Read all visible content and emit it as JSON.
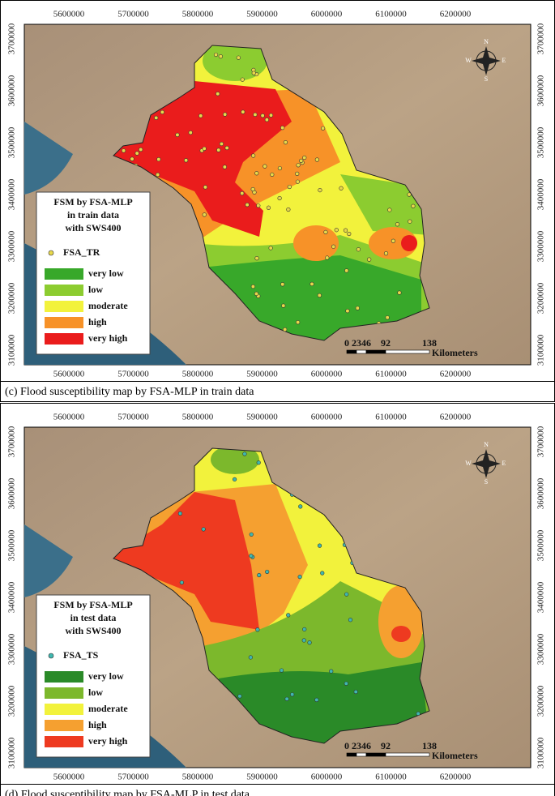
{
  "panels": [
    {
      "x_ticks": [
        "5600000",
        "5700000",
        "5800000",
        "5900000",
        "6000000",
        "6100000",
        "6200000"
      ],
      "y_ticks": [
        "3700000",
        "3600000",
        "3500000",
        "3400000",
        "3300000",
        "3200000",
        "3100000"
      ],
      "legend": {
        "title": [
          "FSM by FSA-MLP",
          "in train data",
          "with SWS400"
        ],
        "points": "FSA_TR",
        "point_color": "#e8d84a",
        "classes": [
          "very low",
          "low",
          "moderate",
          "high",
          "very high"
        ],
        "class_colors": [
          "#38a82a",
          "#8ccc30",
          "#f2f23c",
          "#f79228",
          "#ea1c1c"
        ]
      },
      "scale": {
        "labels": [
          "0",
          "23",
          "46",
          "92",
          "138"
        ],
        "unit": "Kilometers"
      },
      "compass": [
        "N",
        "W",
        "E",
        "S"
      ],
      "caption": "(c) Flood susceptibility map by FSA-MLP in train data"
    },
    {
      "x_ticks": [
        "5600000",
        "5700000",
        "5800000",
        "5900000",
        "6000000",
        "6100000",
        "6200000"
      ],
      "y_ticks": [
        "3700000",
        "3600000",
        "3500000",
        "3400000",
        "3300000",
        "3200000",
        "3100000"
      ],
      "legend": {
        "title": [
          "FSM by FSA-MLP",
          "in test data",
          "with SWS400"
        ],
        "points": "FSA_TS",
        "point_color": "#3fb8b0",
        "classes": [
          "very low",
          "low",
          "moderate",
          "high",
          "very high"
        ],
        "class_colors": [
          "#2a8a28",
          "#7cb82c",
          "#f2f23c",
          "#f5a030",
          "#ee3a20"
        ]
      },
      "scale": {
        "labels": [
          "0",
          "23",
          "46",
          "92",
          "138"
        ],
        "unit": "Kilometers"
      },
      "compass": [
        "N",
        "W",
        "E",
        "S"
      ],
      "caption": "(d) Flood susceptibility map by FSA-MLP in test data"
    }
  ]
}
